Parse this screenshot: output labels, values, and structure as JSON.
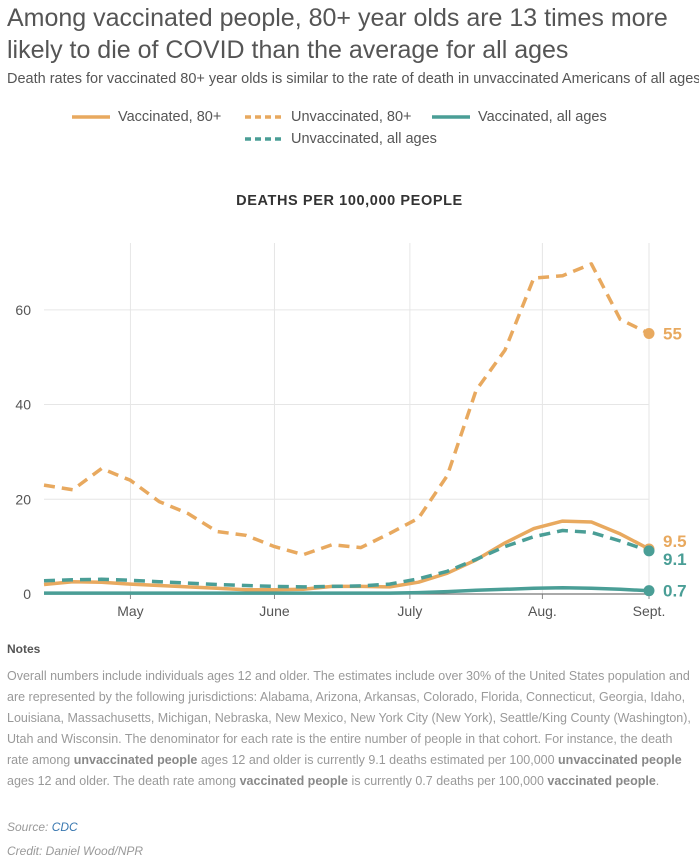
{
  "header": {
    "title": "Among vaccinated people, 80+ year olds are 13 times more likely to die of COVID than the average for all ages",
    "subtitle": "Death rates for vaccinated 80+ year olds is similar to the rate of death in unvaccinated Americans of all ages."
  },
  "legend": [
    {
      "label": "Vaccinated, 80+",
      "color": "#e8a95f",
      "style": "solid"
    },
    {
      "label": "Unvaccinated, 80+",
      "color": "#e8a95f",
      "style": "dashed"
    },
    {
      "label": "Vaccinated, all ages",
      "color": "#4a9e96",
      "style": "solid"
    },
    {
      "label": "Unvaccinated, all ages",
      "color": "#4a9e96",
      "style": "dashed"
    }
  ],
  "chart_data": {
    "type": "line",
    "title": "DEATHS PER 100,000 PEOPLE",
    "xlabel": "",
    "ylabel": "",
    "xlim": [
      0,
      21
    ],
    "ylim": [
      0,
      72
    ],
    "yticks": [
      0,
      20,
      40,
      60
    ],
    "xticks": [
      {
        "label": "May",
        "x": 3
      },
      {
        "label": "June",
        "x": 8
      },
      {
        "label": "July",
        "x": 12.7
      },
      {
        "label": "Aug.",
        "x": 17.3
      },
      {
        "label": "Sept.",
        "x": 21
      }
    ],
    "grid": true,
    "series": [
      {
        "name": "Unvaccinated, 80+",
        "color": "#e8a95f",
        "style": "dashed",
        "x": [
          0,
          1,
          2,
          3,
          4,
          5,
          6,
          7,
          8,
          9,
          10,
          11,
          12,
          13,
          14,
          15,
          16,
          17,
          18,
          19,
          20,
          21
        ],
        "values": [
          23,
          22,
          26.5,
          24,
          19.5,
          17,
          13.2,
          12.4,
          10,
          8.3,
          10.4,
          9.8,
          12.8,
          16,
          25,
          43,
          51.5,
          66.7,
          67.2,
          69.7,
          58,
          55
        ],
        "end_label": "55"
      },
      {
        "name": "Vaccinated, 80+",
        "color": "#e8a95f",
        "style": "solid",
        "x": [
          0,
          1,
          2,
          3,
          4,
          5,
          6,
          7,
          8,
          9,
          10,
          11,
          12,
          13,
          14,
          15,
          16,
          17,
          18,
          19,
          20,
          21
        ],
        "values": [
          2,
          2.6,
          2.5,
          2.1,
          1.8,
          1.5,
          1.2,
          0.9,
          0.9,
          1,
          1.6,
          1.6,
          1.5,
          2.5,
          4.4,
          7.2,
          10.8,
          13.8,
          15.4,
          15.2,
          12.7,
          9.5
        ],
        "end_label": "9.5"
      },
      {
        "name": "Unvaccinated, all ages",
        "color": "#4a9e96",
        "style": "dashed",
        "x": [
          0,
          1,
          2,
          3,
          4,
          5,
          6,
          7,
          8,
          9,
          10,
          11,
          12,
          13,
          14,
          15,
          16,
          17,
          18,
          19,
          20,
          21
        ],
        "values": [
          2.8,
          3,
          3.1,
          2.9,
          2.6,
          2.3,
          2,
          1.8,
          1.6,
          1.5,
          1.6,
          1.7,
          2.1,
          3.2,
          4.8,
          7.3,
          10,
          12.1,
          13.4,
          13,
          11.2,
          9.1
        ],
        "end_label": "9.1"
      },
      {
        "name": "Vaccinated, all ages",
        "color": "#4a9e96",
        "style": "solid",
        "x": [
          0,
          1,
          2,
          3,
          4,
          5,
          6,
          7,
          8,
          9,
          10,
          11,
          12,
          13,
          14,
          15,
          16,
          17,
          18,
          19,
          20,
          21
        ],
        "values": [
          0.2,
          0.2,
          0.2,
          0.2,
          0.2,
          0.2,
          0.2,
          0.2,
          0.2,
          0.2,
          0.2,
          0.2,
          0.2,
          0.3,
          0.5,
          0.8,
          1,
          1.2,
          1.3,
          1.2,
          1,
          0.7
        ],
        "end_label": "0.7"
      }
    ]
  },
  "notes": {
    "heading": "Notes",
    "p1": "Overall numbers include individuals ages 12 and older. The estimates include over 30% of the United States population and are represented by the following jurisdictions: Alabama, Arizona, Arkansas, Colorado, Florida, Connecticut, Georgia, Idaho, Louisiana, Massachusetts, Michigan, Nebraska, New Mexico, New York City (New York), Seattle/King County (Washington), Utah and Wisconsin. The denominator for each rate is the entire number of people in that cohort. For instance, the death rate among",
    "b1": "unvaccinated people",
    "p2": "ages 12 and older is currently 9.1 deaths estimated per 100,000",
    "b2": "unvaccinated people",
    "p3": "ages 12 and older. The death rate among",
    "b3": "vaccinated people",
    "p4": "is currently 0.7 deaths per 100,000",
    "b4": "vaccinated people",
    "p5": "."
  },
  "footer": {
    "source_prefix": "Source:",
    "source_link": "CDC",
    "credit": "Credit: Daniel Wood/NPR"
  }
}
